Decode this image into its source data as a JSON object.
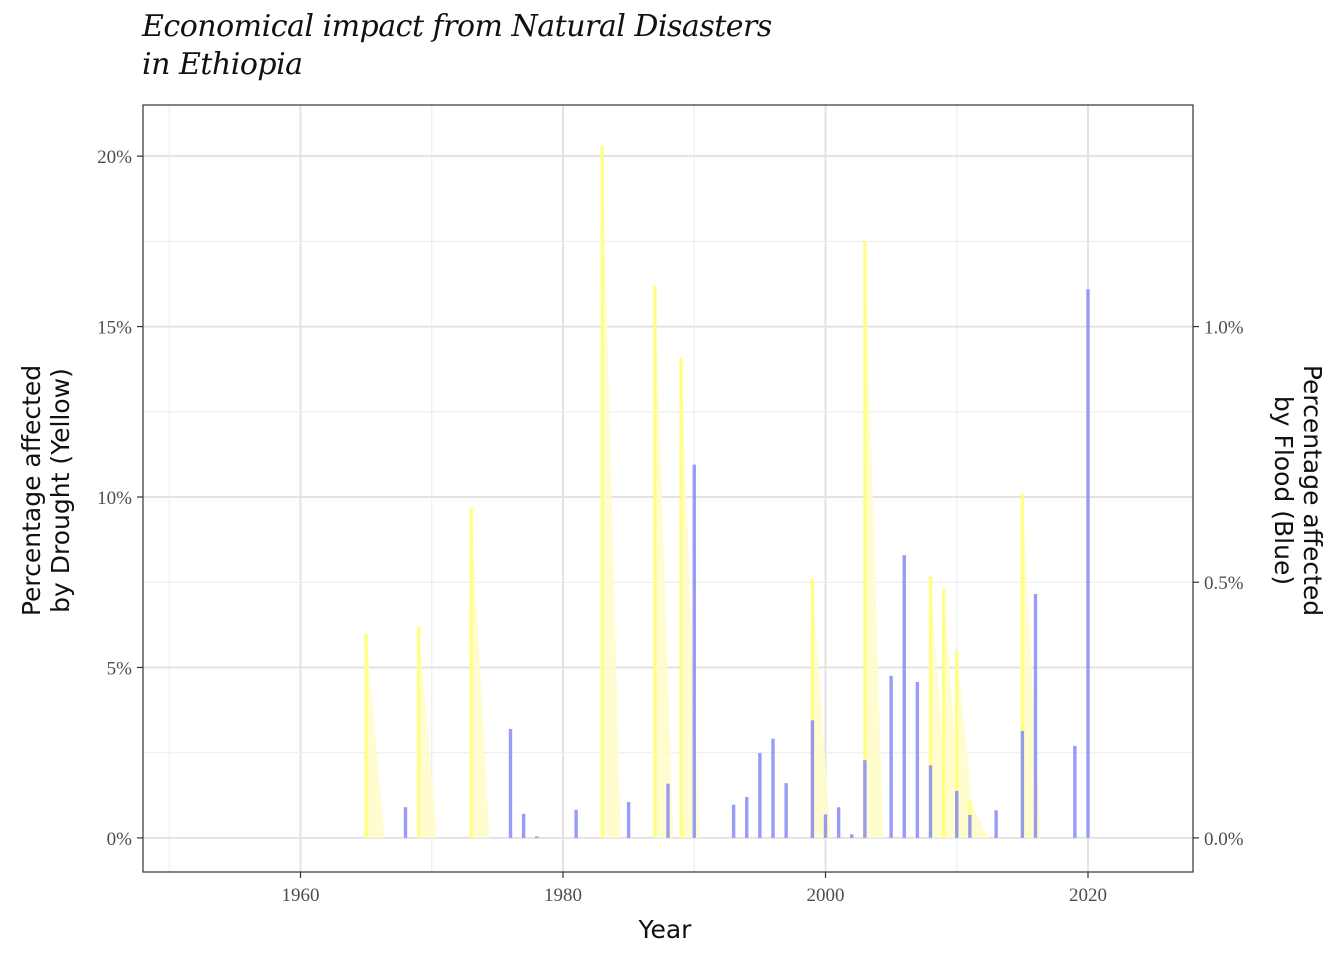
{
  "title_lines": [
    "Economical impact from Natural Disasters",
    "in Ethiopia"
  ],
  "chart_data": {
    "type": "bar",
    "title": "Economical impact from Natural Disasters in Ethiopia",
    "xlabel": "Year",
    "ylabel_left_lines": [
      "Percentage affected",
      "by Drought  (Yellow)"
    ],
    "ylabel_right_lines": [
      "Percentage affected",
      "by Flood  (Blue)"
    ],
    "xlim": [
      1948,
      2028
    ],
    "x_ticks": [
      1960,
      1980,
      2000,
      2020
    ],
    "ylim_left": [
      -1.0,
      21.5
    ],
    "y_ticks_left": [
      0,
      5,
      10,
      15,
      20
    ],
    "y_tick_labels_left": [
      "0%",
      "5%",
      "10%",
      "15%",
      "20%"
    ],
    "ylim_right": [
      -0.0667,
      1.4333
    ],
    "y_ticks_right": [
      0,
      0.5,
      1.0
    ],
    "y_tick_labels_right": [
      "0.0%",
      "0.5%",
      "1.0%"
    ],
    "grid": true,
    "series": [
      {
        "name": "Drought",
        "axis": "left",
        "color": "#ffff7a",
        "area_color": "#fffcc8",
        "x": [
          1965,
          1969,
          1973,
          1983,
          1987,
          1989,
          1999,
          2003,
          2008,
          2009,
          2010,
          2011,
          2015
        ],
        "values": [
          6.0,
          6.2,
          9.7,
          20.3,
          16.2,
          14.1,
          7.6,
          17.5,
          7.7,
          7.3,
          5.5,
          1.1,
          10.1
        ]
      },
      {
        "name": "Flood",
        "axis": "right",
        "color": "#8a8ef5",
        "x": [
          1968,
          1976,
          1977,
          1978,
          1981,
          1985,
          1988,
          1990,
          1993,
          1994,
          1995,
          1996,
          1997,
          1999,
          2000,
          2001,
          2002,
          2003,
          2005,
          2006,
          2007,
          2008,
          2010,
          2011,
          2013,
          2015,
          2016,
          2019,
          2020
        ],
        "values": [
          0.06,
          0.213,
          0.047,
          0.003,
          0.055,
          0.07,
          0.106,
          0.73,
          0.065,
          0.08,
          0.166,
          0.194,
          0.107,
          0.23,
          0.046,
          0.06,
          0.007,
          0.152,
          0.317,
          0.553,
          0.305,
          0.142,
          0.092,
          0.045,
          0.054,
          0.209,
          0.477,
          0.18,
          1.073
        ]
      }
    ]
  }
}
